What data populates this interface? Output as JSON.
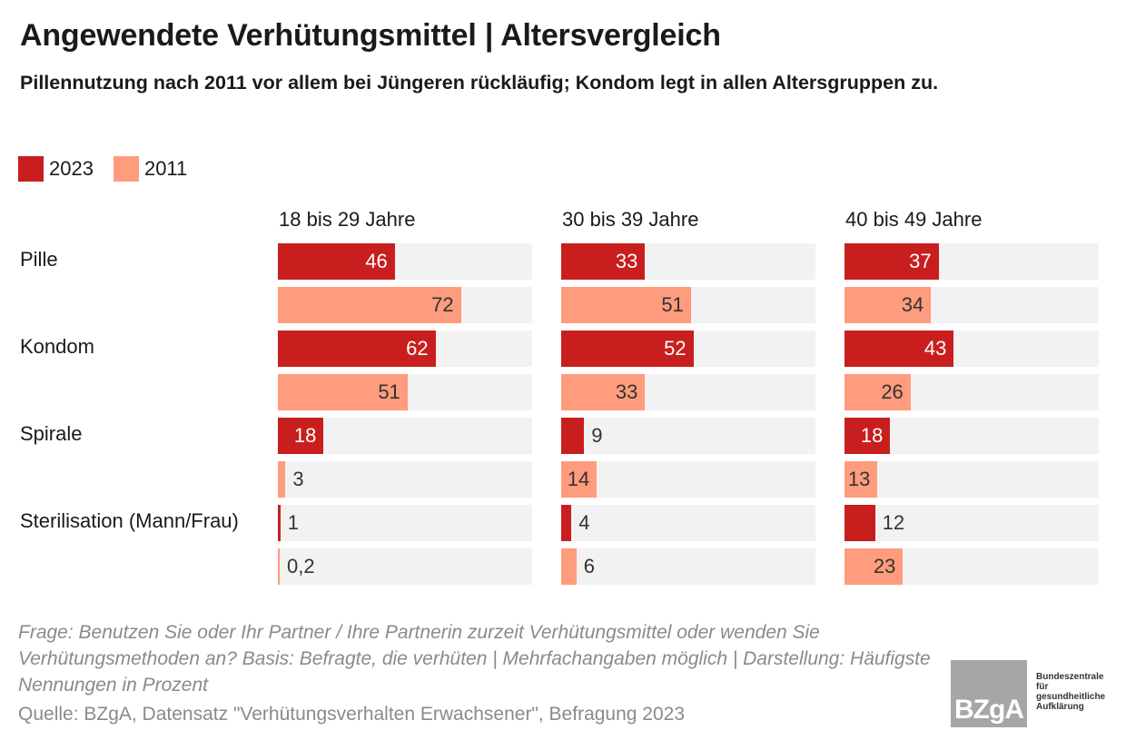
{
  "title": "Angewendete Verhütungsmittel | Altersvergleich",
  "subtitle": "Pillennutzung nach 2011 vor allem bei Jüngeren rückläufig; Kondom legt in allen Altersgruppen zu.",
  "legend": [
    {
      "label": "2023",
      "color": "#c91e1e"
    },
    {
      "label": "2011",
      "color": "#fe9c7d"
    }
  ],
  "colors": {
    "y2023": "#c91e1e",
    "y2011": "#fe9c7d",
    "track": "#f2f2f2"
  },
  "chart_data": {
    "type": "bar",
    "orientation": "horizontal",
    "unit": "Prozent",
    "xlim": [
      0,
      100
    ],
    "categories": [
      "Pille",
      "Kondom",
      "Spirale",
      "Sterilisation (Mann/Frau)"
    ],
    "panels": [
      {
        "title": "18 bis 29 Jahre",
        "series": [
          {
            "name": "2023",
            "values": [
              46,
              62,
              18,
              1
            ],
            "labels": [
              "46",
              "62",
              "18",
              "1"
            ]
          },
          {
            "name": "2011",
            "values": [
              72,
              51,
              3,
              0.2
            ],
            "labels": [
              "72",
              "51",
              "3",
              "0,2"
            ]
          }
        ]
      },
      {
        "title": "30 bis 39 Jahre",
        "series": [
          {
            "name": "2023",
            "values": [
              33,
              52,
              9,
              4
            ],
            "labels": [
              "33",
              "52",
              "9",
              "4"
            ]
          },
          {
            "name": "2011",
            "values": [
              51,
              33,
              14,
              6
            ],
            "labels": [
              "51",
              "33",
              "14",
              "6"
            ]
          }
        ]
      },
      {
        "title": "40 bis 49 Jahre",
        "series": [
          {
            "name": "2023",
            "values": [
              37,
              43,
              18,
              12
            ],
            "labels": [
              "37",
              "43",
              "18",
              "12"
            ]
          },
          {
            "name": "2011",
            "values": [
              34,
              26,
              13,
              23
            ],
            "labels": [
              "34",
              "26",
              "13",
              "23"
            ]
          }
        ]
      }
    ]
  },
  "note": "Frage: Benutzen Sie oder Ihr Partner / Ihre Partnerin zurzeit Verhütungsmittel oder wenden Sie Verhütungsmethoden an? Basis: Befragte, die verhüten | Mehrfachangaben möglich | Darstellung: Häufigste Nennungen in Prozent",
  "source": "Quelle: BZgA, Datensatz \"Verhütungsverhalten Erwachsener\", Befragung 2023",
  "logo": {
    "mark": "BZgA",
    "text": [
      "Bundeszentrale",
      "für",
      "gesundheitliche",
      "Aufklärung"
    ]
  }
}
